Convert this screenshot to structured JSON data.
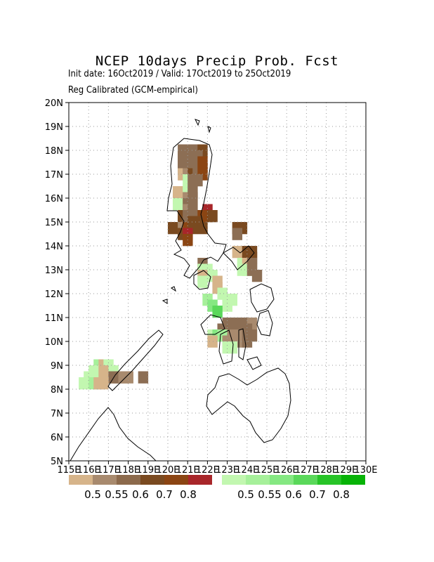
{
  "title": "NCEP 10days Precip Prob. Fcst",
  "subtitle": "Init date: 16Oct2019 / Valid: 17Oct2019 to 25Oct2019",
  "note": "Reg Calibrated (GCM-empirical)",
  "axes": {
    "lat_labels": [
      "5N",
      "6N",
      "7N",
      "8N",
      "9N",
      "10N",
      "11N",
      "12N",
      "13N",
      "14N",
      "15N",
      "16N",
      "17N",
      "18N",
      "19N",
      "20N"
    ],
    "lon_labels": [
      "115E",
      "116E",
      "117E",
      "118E",
      "119E",
      "120E",
      "121E",
      "122E",
      "123E",
      "124E",
      "125E",
      "126E",
      "127E",
      "128E",
      "129E",
      "130E"
    ],
    "lat_range": [
      5,
      20
    ],
    "lon_range": [
      115,
      130
    ],
    "grid": true
  },
  "legend": {
    "dry": {
      "colors": [
        "#d6b48a",
        "#a88a6e",
        "#8c6a4c",
        "#7a4a20",
        "#8b4513",
        "#a8262a"
      ],
      "labels": [
        "0.5",
        "0.55",
        "0.6",
        "0.7",
        "0.8"
      ]
    },
    "wet": {
      "colors": [
        "#c2f7b0",
        "#a6f09a",
        "#85e882",
        "#5ad85a",
        "#27c427",
        "#07b307"
      ],
      "labels": [
        "0.5",
        "0.55",
        "0.6",
        "0.7",
        "0.8"
      ]
    }
  },
  "cells": [
    {
      "lon": 120.5,
      "lat": 17.75,
      "color": "#8c6e54"
    },
    {
      "lon": 120.75,
      "lat": 17.75,
      "color": "#8c6e54"
    },
    {
      "lon": 121.0,
      "lat": 17.75,
      "color": "#8c6e54"
    },
    {
      "lon": 121.25,
      "lat": 17.75,
      "color": "#8c6e54"
    },
    {
      "lon": 121.5,
      "lat": 17.75,
      "color": "#7a4a20"
    },
    {
      "lon": 120.5,
      "lat": 17.5,
      "color": "#8c6e54"
    },
    {
      "lon": 120.75,
      "lat": 17.5,
      "color": "#8c6e54"
    },
    {
      "lon": 121.0,
      "lat": 17.5,
      "color": "#8c6e54"
    },
    {
      "lon": 121.25,
      "lat": 17.5,
      "color": "#8c6e54"
    },
    {
      "lon": 120.5,
      "lat": 17.25,
      "color": "#8c6e54"
    },
    {
      "lon": 120.75,
      "lat": 17.25,
      "color": "#8c6e54"
    },
    {
      "lon": 121.0,
      "lat": 17.25,
      "color": "#8c6e54"
    },
    {
      "lon": 121.25,
      "lat": 17.25,
      "color": "#8c6e54"
    },
    {
      "lon": 121.5,
      "lat": 17.25,
      "color": "#8b4513"
    },
    {
      "lon": 120.5,
      "lat": 17.0,
      "color": "#8c6e54"
    },
    {
      "lon": 120.75,
      "lat": 17.0,
      "color": "#8c6e54"
    },
    {
      "lon": 121.0,
      "lat": 17.0,
      "color": "#8c6e54"
    },
    {
      "lon": 121.25,
      "lat": 17.0,
      "color": "#8c6e54"
    },
    {
      "lon": 121.5,
      "lat": 17.0,
      "color": "#8b4513"
    },
    {
      "lon": 120.5,
      "lat": 16.75,
      "color": "#d6b48a"
    },
    {
      "lon": 120.75,
      "lat": 16.75,
      "color": "#a88a6e"
    },
    {
      "lon": 121.0,
      "lat": 16.75,
      "color": "#7a4a20"
    },
    {
      "lon": 121.25,
      "lat": 16.75,
      "color": "#8c6e54"
    },
    {
      "lon": 121.5,
      "lat": 16.75,
      "color": "#8b4513"
    },
    {
      "lon": 120.75,
      "lat": 16.5,
      "color": "#c2f7b0"
    },
    {
      "lon": 121.0,
      "lat": 16.5,
      "color": "#8c6e54"
    },
    {
      "lon": 121.25,
      "lat": 16.5,
      "color": "#8c6e54"
    },
    {
      "lon": 120.25,
      "lat": 16.0,
      "color": "#d6b48a"
    },
    {
      "lon": 120.5,
      "lat": 16.0,
      "color": "#d6b48a"
    },
    {
      "lon": 120.75,
      "lat": 16.0,
      "color": "#c2f7b0"
    },
    {
      "lon": 121.0,
      "lat": 16.0,
      "color": "#8c6e54"
    },
    {
      "lon": 120.25,
      "lat": 15.75,
      "color": "#d6b48a"
    },
    {
      "lon": 120.5,
      "lat": 15.75,
      "color": "#d6b48a"
    },
    {
      "lon": 120.75,
      "lat": 15.75,
      "color": "#a88a6e"
    },
    {
      "lon": 121.0,
      "lat": 15.75,
      "color": "#8c6e54"
    },
    {
      "lon": 120.25,
      "lat": 15.5,
      "color": "#c2f7b0"
    },
    {
      "lon": 120.75,
      "lat": 15.5,
      "color": "#8c6e54"
    },
    {
      "lon": 120.75,
      "lat": 15.25,
      "color": "#a88a6e"
    },
    {
      "lon": 121.0,
      "lat": 15.25,
      "color": "#8c6e54"
    },
    {
      "lon": 121.75,
      "lat": 15.25,
      "color": "#a8262a"
    },
    {
      "lon": 120.5,
      "lat": 15.0,
      "color": "#7a4a20"
    },
    {
      "lon": 120.75,
      "lat": 15.0,
      "color": "#8c6e54"
    },
    {
      "lon": 121.0,
      "lat": 15.0,
      "color": "#8c6e54"
    },
    {
      "lon": 121.5,
      "lat": 15.0,
      "color": "#8b4513"
    },
    {
      "lon": 121.75,
      "lat": 15.0,
      "color": "#8b4513"
    },
    {
      "lon": 122.0,
      "lat": 15.0,
      "color": "#7a4a20"
    },
    {
      "lon": 120.5,
      "lat": 14.75,
      "color": "#7a4a20"
    },
    {
      "lon": 120.75,
      "lat": 14.75,
      "color": "#8c6e54"
    },
    {
      "lon": 121.0,
      "lat": 14.75,
      "color": "#7a4a20"
    },
    {
      "lon": 121.25,
      "lat": 14.75,
      "color": "#7a4a20"
    },
    {
      "lon": 120.0,
      "lat": 14.5,
      "color": "#7a4a20"
    },
    {
      "lon": 120.5,
      "lat": 14.5,
      "color": "#a88a6e"
    },
    {
      "lon": 120.75,
      "lat": 14.5,
      "color": "#8b4513"
    },
    {
      "lon": 121.0,
      "lat": 14.5,
      "color": "#7a4a20"
    },
    {
      "lon": 121.5,
      "lat": 14.5,
      "color": "#7a4a20"
    },
    {
      "lon": 123.25,
      "lat": 14.5,
      "color": "#7a4a20"
    },
    {
      "lon": 123.5,
      "lat": 14.5,
      "color": "#7a4a20"
    },
    {
      "lon": 120.5,
      "lat": 14.25,
      "color": "#7a4a20"
    },
    {
      "lon": 120.75,
      "lat": 14.25,
      "color": "#a8262a"
    },
    {
      "lon": 123.25,
      "lat": 14.25,
      "color": "#8c6e54"
    },
    {
      "lon": 120.75,
      "lat": 14.0,
      "color": "#8b4513"
    },
    {
      "lon": 123.25,
      "lat": 13.5,
      "color": "#d6b48a"
    },
    {
      "lon": 123.75,
      "lat": 13.5,
      "color": "#7a4a20"
    },
    {
      "lon": 124.0,
      "lat": 13.5,
      "color": "#7a4a20"
    },
    {
      "lon": 124.0,
      "lat": 13.25,
      "color": "#7a4a20"
    },
    {
      "lon": 121.5,
      "lat": 13.0,
      "color": "#8c6e54"
    },
    {
      "lon": 123.5,
      "lat": 13.0,
      "color": "#c2f7b0"
    },
    {
      "lon": 123.75,
      "lat": 13.0,
      "color": "#d6b48a"
    },
    {
      "lon": 124.0,
      "lat": 13.0,
      "color": "#8c6e54"
    },
    {
      "lon": 121.5,
      "lat": 12.75,
      "color": "#c2f7b0"
    },
    {
      "lon": 121.75,
      "lat": 12.75,
      "color": "#c2f7b0"
    },
    {
      "lon": 123.5,
      "lat": 12.75,
      "color": "#c2f7b0"
    },
    {
      "lon": 123.75,
      "lat": 12.75,
      "color": "#c2f7b0"
    },
    {
      "lon": 124.0,
      "lat": 12.75,
      "color": "#8c6e54"
    },
    {
      "lon": 121.5,
      "lat": 12.5,
      "color": "#d6b48a"
    },
    {
      "lon": 122.0,
      "lat": 12.5,
      "color": "#c2f7b0"
    },
    {
      "lon": 124.25,
      "lat": 12.5,
      "color": "#8c6e54"
    },
    {
      "lon": 121.5,
      "lat": 12.25,
      "color": "#c2f7b0"
    },
    {
      "lon": 122.25,
      "lat": 12.25,
      "color": "#d6b48a"
    },
    {
      "lon": 122.25,
      "lat": 12.0,
      "color": "#d6b48a"
    },
    {
      "lon": 122.5,
      "lat": 11.75,
      "color": "#c2f7b0"
    },
    {
      "lon": 121.75,
      "lat": 11.5,
      "color": "#a6f09a"
    },
    {
      "lon": 122.75,
      "lat": 11.5,
      "color": "#c2f7b0"
    },
    {
      "lon": 123.0,
      "lat": 11.5,
      "color": "#c2f7b0"
    },
    {
      "lon": 122.0,
      "lat": 11.25,
      "color": "#85e882"
    },
    {
      "lon": 122.75,
      "lat": 11.25,
      "color": "#c2f7b0"
    },
    {
      "lon": 122.25,
      "lat": 11.0,
      "color": "#5ad85a"
    },
    {
      "lon": 122.75,
      "lat": 10.5,
      "color": "#8c6e54"
    },
    {
      "lon": 123.0,
      "lat": 10.5,
      "color": "#8c6e54"
    },
    {
      "lon": 123.25,
      "lat": 10.5,
      "color": "#8c6e54"
    },
    {
      "lon": 123.5,
      "lat": 10.5,
      "color": "#8c6e54"
    },
    {
      "lon": 123.75,
      "lat": 10.5,
      "color": "#8c6e54"
    },
    {
      "lon": 124.0,
      "lat": 10.5,
      "color": "#a88a6e"
    },
    {
      "lon": 122.5,
      "lat": 10.25,
      "color": "#8c6e54"
    },
    {
      "lon": 123.0,
      "lat": 10.25,
      "color": "#8c6e54"
    },
    {
      "lon": 123.25,
      "lat": 10.25,
      "color": "#8c6e54"
    },
    {
      "lon": 123.5,
      "lat": 10.25,
      "color": "#8c6e54"
    },
    {
      "lon": 123.75,
      "lat": 10.25,
      "color": "#8c6e54"
    },
    {
      "lon": 122.0,
      "lat": 10.0,
      "color": "#c2f7b0"
    },
    {
      "lon": 122.25,
      "lat": 10.0,
      "color": "#85e882"
    },
    {
      "lon": 122.5,
      "lat": 10.0,
      "color": "#a6f09a"
    },
    {
      "lon": 123.0,
      "lat": 10.0,
      "color": "#a88a6e"
    },
    {
      "lon": 123.25,
      "lat": 10.0,
      "color": "#a88a6e"
    },
    {
      "lon": 123.75,
      "lat": 10.0,
      "color": "#8c6e54"
    },
    {
      "lon": 124.0,
      "lat": 10.0,
      "color": "#8c6e54"
    },
    {
      "lon": 122.0,
      "lat": 9.75,
      "color": "#d6b48a"
    },
    {
      "lon": 122.75,
      "lat": 9.75,
      "color": "#a88a6e"
    },
    {
      "lon": 123.0,
      "lat": 9.75,
      "color": "#a88a6e"
    },
    {
      "lon": 123.25,
      "lat": 9.75,
      "color": "#a88a6e"
    },
    {
      "lon": 123.75,
      "lat": 9.75,
      "color": "#8c6e54"
    },
    {
      "lon": 122.75,
      "lat": 9.5,
      "color": "#c2f7b0"
    },
    {
      "lon": 123.0,
      "lat": 9.5,
      "color": "#c2f7b0"
    },
    {
      "lon": 116.25,
      "lat": 8.75,
      "color": "#a6f09a"
    },
    {
      "lon": 116.5,
      "lat": 8.75,
      "color": "#d6b48a"
    },
    {
      "lon": 116.75,
      "lat": 8.75,
      "color": "#c2f7b0"
    },
    {
      "lon": 116.0,
      "lat": 8.5,
      "color": "#c2f7b0"
    },
    {
      "lon": 116.25,
      "lat": 8.5,
      "color": "#c2f7b0"
    },
    {
      "lon": 116.5,
      "lat": 8.5,
      "color": "#d6b48a"
    },
    {
      "lon": 116.75,
      "lat": 8.5,
      "color": "#d6b48a"
    },
    {
      "lon": 117.0,
      "lat": 8.5,
      "color": "#c2f7b0"
    },
    {
      "lon": 115.75,
      "lat": 8.25,
      "color": "#c2f7b0"
    },
    {
      "lon": 116.25,
      "lat": 8.25,
      "color": "#c2f7b0"
    },
    {
      "lon": 116.5,
      "lat": 8.25,
      "color": "#d6b48a"
    },
    {
      "lon": 116.75,
      "lat": 8.25,
      "color": "#d6b48a"
    },
    {
      "lon": 117.0,
      "lat": 8.25,
      "color": "#8c6e54"
    },
    {
      "lon": 117.25,
      "lat": 8.25,
      "color": "#8c6e54"
    },
    {
      "lon": 117.5,
      "lat": 8.25,
      "color": "#a88a6e"
    },
    {
      "lon": 117.75,
      "lat": 8.25,
      "color": "#a88a6e"
    },
    {
      "lon": 118.5,
      "lat": 8.25,
      "color": "#8c6e54"
    },
    {
      "lon": 115.5,
      "lat": 8.0,
      "color": "#c2f7b0"
    },
    {
      "lon": 116.0,
      "lat": 8.0,
      "color": "#a6f09a"
    },
    {
      "lon": 116.25,
      "lat": 8.0,
      "color": "#d6b48a"
    },
    {
      "lon": 116.5,
      "lat": 8.0,
      "color": "#d6b48a"
    }
  ]
}
